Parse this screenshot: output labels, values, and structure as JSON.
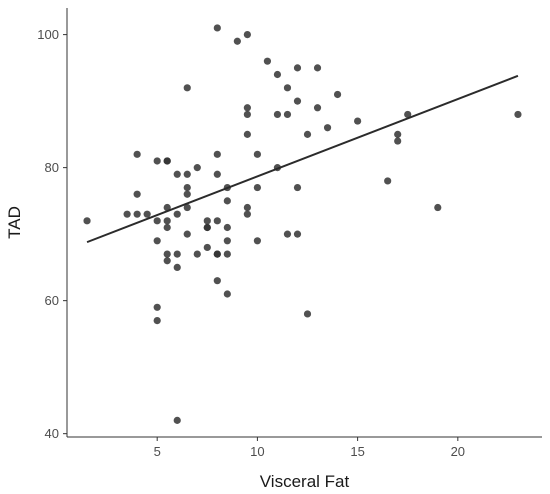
{
  "chart_data": {
    "type": "scatter",
    "title": "",
    "xlabel": "Visceral Fat",
    "ylabel": "TAD",
    "xlim": [
      0.5,
      24.2
    ],
    "ylim": [
      39.5,
      104
    ],
    "xticks": [
      5,
      10,
      15,
      20
    ],
    "yticks": [
      40,
      60,
      80,
      100
    ],
    "grid": false,
    "legend": "none",
    "point_color": "#333333",
    "line_color": "#2b2b2b",
    "points": [
      [
        1.5,
        72
      ],
      [
        3.5,
        73
      ],
      [
        4,
        82
      ],
      [
        4,
        76
      ],
      [
        4,
        73
      ],
      [
        4.5,
        73
      ],
      [
        5,
        81
      ],
      [
        5,
        72
      ],
      [
        5,
        69
      ],
      [
        5,
        59
      ],
      [
        5,
        57
      ],
      [
        5.5,
        81
      ],
      [
        5.5,
        81
      ],
      [
        5.5,
        74
      ],
      [
        5.5,
        72
      ],
      [
        5.5,
        71
      ],
      [
        5.5,
        67
      ],
      [
        5.5,
        66
      ],
      [
        6,
        79
      ],
      [
        6,
        73
      ],
      [
        6,
        67
      ],
      [
        6,
        65
      ],
      [
        6,
        42
      ],
      [
        6.5,
        92
      ],
      [
        6.5,
        79
      ],
      [
        6.5,
        77
      ],
      [
        6.5,
        76
      ],
      [
        6.5,
        74
      ],
      [
        6.5,
        70
      ],
      [
        7,
        80
      ],
      [
        7,
        67
      ],
      [
        7.5,
        72
      ],
      [
        7.5,
        71
      ],
      [
        7.5,
        71
      ],
      [
        7.5,
        68
      ],
      [
        8,
        101
      ],
      [
        8,
        82
      ],
      [
        8,
        79
      ],
      [
        8,
        72
      ],
      [
        8,
        67
      ],
      [
        8,
        67
      ],
      [
        8,
        63
      ],
      [
        8.5,
        77
      ],
      [
        8.5,
        75
      ],
      [
        8.5,
        71
      ],
      [
        8.5,
        69
      ],
      [
        8.5,
        67
      ],
      [
        8.5,
        61
      ],
      [
        9,
        99
      ],
      [
        9.5,
        100
      ],
      [
        9.5,
        89
      ],
      [
        9.5,
        88
      ],
      [
        9.5,
        85
      ],
      [
        9.5,
        74
      ],
      [
        9.5,
        73
      ],
      [
        10,
        82
      ],
      [
        10,
        77
      ],
      [
        10,
        69
      ],
      [
        10.5,
        96
      ],
      [
        11,
        94
      ],
      [
        11,
        88
      ],
      [
        11,
        80
      ],
      [
        11.5,
        92
      ],
      [
        11.5,
        88
      ],
      [
        11.5,
        70
      ],
      [
        12,
        95
      ],
      [
        12,
        90
      ],
      [
        12,
        77
      ],
      [
        12,
        70
      ],
      [
        12.5,
        85
      ],
      [
        12.5,
        58
      ],
      [
        13,
        95
      ],
      [
        13,
        89
      ],
      [
        13.5,
        86
      ],
      [
        14,
        91
      ],
      [
        15,
        87
      ],
      [
        16.5,
        78
      ],
      [
        17,
        85
      ],
      [
        17,
        84
      ],
      [
        17.5,
        88
      ],
      [
        19,
        74
      ],
      [
        23,
        88
      ]
    ],
    "fit_line": {
      "x": [
        1.5,
        23
      ],
      "y": [
        68.8,
        93.8
      ]
    }
  }
}
